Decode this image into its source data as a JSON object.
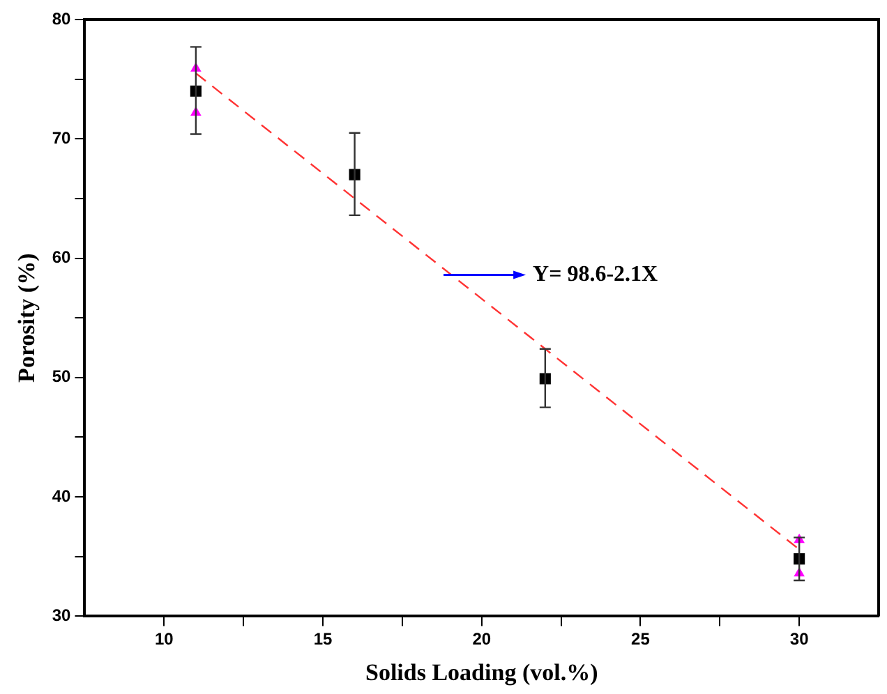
{
  "chart_data": {
    "type": "scatter",
    "xlabel": "Solids Loading (vol.%)",
    "ylabel": "Porosity (%)",
    "xlim": [
      7.5,
      32.5
    ],
    "xticks": [
      10,
      {
        "value": 12.5,
        "label": null
      },
      15,
      {
        "value": 17.5,
        "label": null
      },
      20,
      {
        "value": 22.5,
        "label": null
      },
      25,
      {
        "value": 27.5,
        "label": null
      },
      30
    ],
    "ylim": [
      30,
      80
    ],
    "yticks": [
      30,
      {
        "value": 35,
        "label": null
      },
      40,
      {
        "value": 45,
        "label": null
      },
      50,
      {
        "value": 55,
        "label": null
      },
      60,
      {
        "value": 65,
        "label": null
      },
      70,
      {
        "value": 75,
        "label": null
      },
      80
    ],
    "grid": false,
    "legend": false,
    "marker": "square",
    "series": [
      {
        "type": "scatter",
        "color": "#000000",
        "x": [
          11,
          16,
          22,
          30
        ],
        "values": [
          74,
          67,
          49.9,
          34.8
        ],
        "errors": [
          [
            70.4,
            77.7
          ],
          [
            63.6,
            70.5
          ],
          [
            47.5,
            52.4
          ],
          [
            33.0,
            36.6
          ]
        ]
      },
      {
        "type": "scatter",
        "color": "#ff00ff",
        "marker": "triangle",
        "x": [
          11,
          11,
          30,
          30
        ],
        "values": [
          75.9,
          72.2,
          36.4,
          33.6
        ]
      },
      {
        "type": "line",
        "color": "#ff3333",
        "line_style": "dashed",
        "marker": "none",
        "x": [
          11,
          30
        ],
        "values": [
          75.5,
          35.6
        ]
      }
    ],
    "annotations": [
      {
        "text": "Y= 98.6-2.1X",
        "x": 18.8,
        "y": 58.6
      }
    ]
  }
}
